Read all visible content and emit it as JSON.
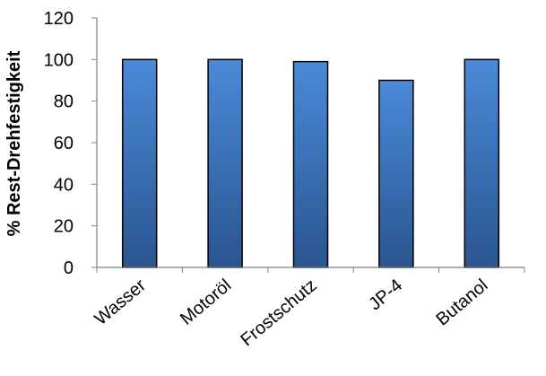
{
  "chart_data": {
    "type": "bar",
    "categories": [
      "Wasser",
      "Motoröl",
      "Frostschutz",
      "JP-4",
      "Butanol"
    ],
    "values": [
      100,
      100,
      99,
      90,
      100
    ],
    "title": "",
    "xlabel": "",
    "ylabel": "% Rest-Drehfestigkeit",
    "ylim": [
      0,
      120
    ],
    "yticks": [
      0,
      20,
      40,
      60,
      80,
      100,
      120
    ],
    "grid": false,
    "legend": "none",
    "colors": {
      "bar_top": "#4a8ad8",
      "bar_bottom": "#2a5590",
      "bar_border": "#000000",
      "axis": "#7f7f7f"
    }
  }
}
